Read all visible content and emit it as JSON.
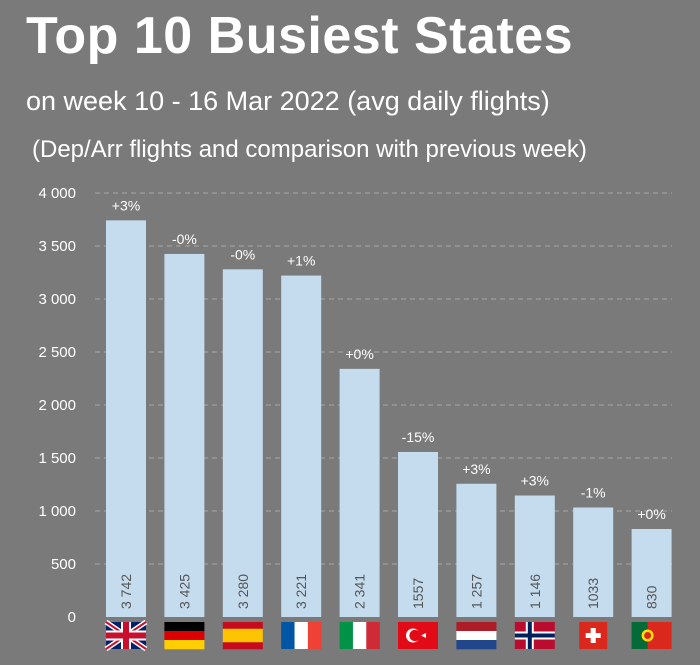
{
  "header": {
    "title": "Top 10 Busiest States",
    "subtitle": "on week 10 - 16 Mar 2022 (avg daily flights)",
    "subtitle2": "(Dep/Arr flights and comparison with previous week)"
  },
  "chart_data": {
    "type": "bar",
    "title": "Top 10 Busiest States",
    "subtitle": "on week 10 - 16 Mar 2022 (avg daily flights)",
    "xlabel": "",
    "ylabel": "",
    "ylim": [
      0,
      4000
    ],
    "yticks": [
      0,
      500,
      1000,
      1500,
      2000,
      2500,
      3000,
      3500,
      4000
    ],
    "ytick_labels": [
      "0",
      "500",
      "1 000",
      "1 500",
      "2 000",
      "2 500",
      "3 000",
      "3 500",
      "4 000"
    ],
    "grid": true,
    "categories": [
      "uk-flag",
      "germany-flag",
      "spain-flag",
      "france-flag",
      "italy-flag",
      "turkey-flag",
      "netherlands-flag",
      "norway-flag",
      "switzerland-flag",
      "portugal-flag"
    ],
    "values": [
      3742,
      3425,
      3280,
      3221,
      2341,
      1557,
      1257,
      1146,
      1033,
      830
    ],
    "value_labels": [
      "3 742",
      "3 425",
      "3 280",
      "3 221",
      "2 341",
      "1557",
      "1 257",
      "1 146",
      "1033",
      "830"
    ],
    "change_labels": [
      "+3%",
      "-0%",
      "-0%",
      "+1%",
      "+0%",
      "-15%",
      "+3%",
      "+3%",
      "-1%",
      "+0%"
    ],
    "colors": {
      "background": "#7a7a7a",
      "bar": "#c5dbee",
      "grid": "#a8a8a8",
      "text": "#ffffff",
      "value_text": "#555555"
    }
  }
}
